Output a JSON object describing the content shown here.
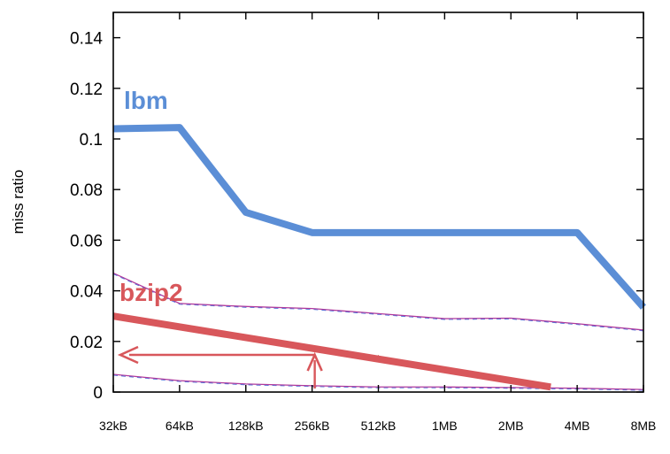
{
  "chart_data": {
    "type": "line",
    "title": "",
    "xlabel": "",
    "ylabel": "miss ratio",
    "categories": [
      "32kB",
      "64kB",
      "128kB",
      "256kB",
      "512kB",
      "1MB",
      "2MB",
      "4MB",
      "8MB"
    ],
    "ylim": [
      0,
      0.15
    ],
    "yticks": [
      "0",
      "0.02",
      "0.04",
      "0.06",
      "0.08",
      "0.1",
      "0.12",
      "0.14"
    ],
    "ytick_values": [
      0,
      0.02,
      0.04,
      0.06,
      0.08,
      0.1,
      0.12,
      0.14
    ],
    "series": [
      {
        "name": "lbm",
        "color": "#5b8ed6",
        "values": [
          0.104,
          0.1045,
          0.071,
          0.063,
          0.063,
          0.063,
          0.063,
          0.063,
          0.0335
        ]
      },
      {
        "name": "bzip2",
        "color": "#d8575b",
        "values": [
          0.03,
          0.0262,
          0.0225,
          0.0185,
          0.0145,
          0.0095,
          0.005,
          0.0,
          0.0
        ]
      }
    ],
    "bounds": [
      {
        "name": "bzip2 upper bound",
        "color": "#b03a9c",
        "values": [
          0.047,
          0.035,
          0.0338,
          0.033,
          0.031,
          0.029,
          0.0292,
          0.027,
          0.0245
        ]
      },
      {
        "name": "bzip2 lower bound",
        "color": "#b03a9c",
        "values": [
          0.007,
          0.0045,
          0.0032,
          0.0025,
          0.002,
          0.002,
          0.0018,
          0.0015,
          0.001
        ]
      }
    ],
    "annotations": [
      {
        "type": "arrow",
        "direction": "left",
        "x_category": "256kB",
        "y_value": 0.0145,
        "to_category": "32kB"
      },
      {
        "type": "arrow",
        "direction": "up",
        "x_category": "256kB",
        "from_value": 0.0,
        "to_value": 0.0145
      }
    ],
    "grid": false
  }
}
